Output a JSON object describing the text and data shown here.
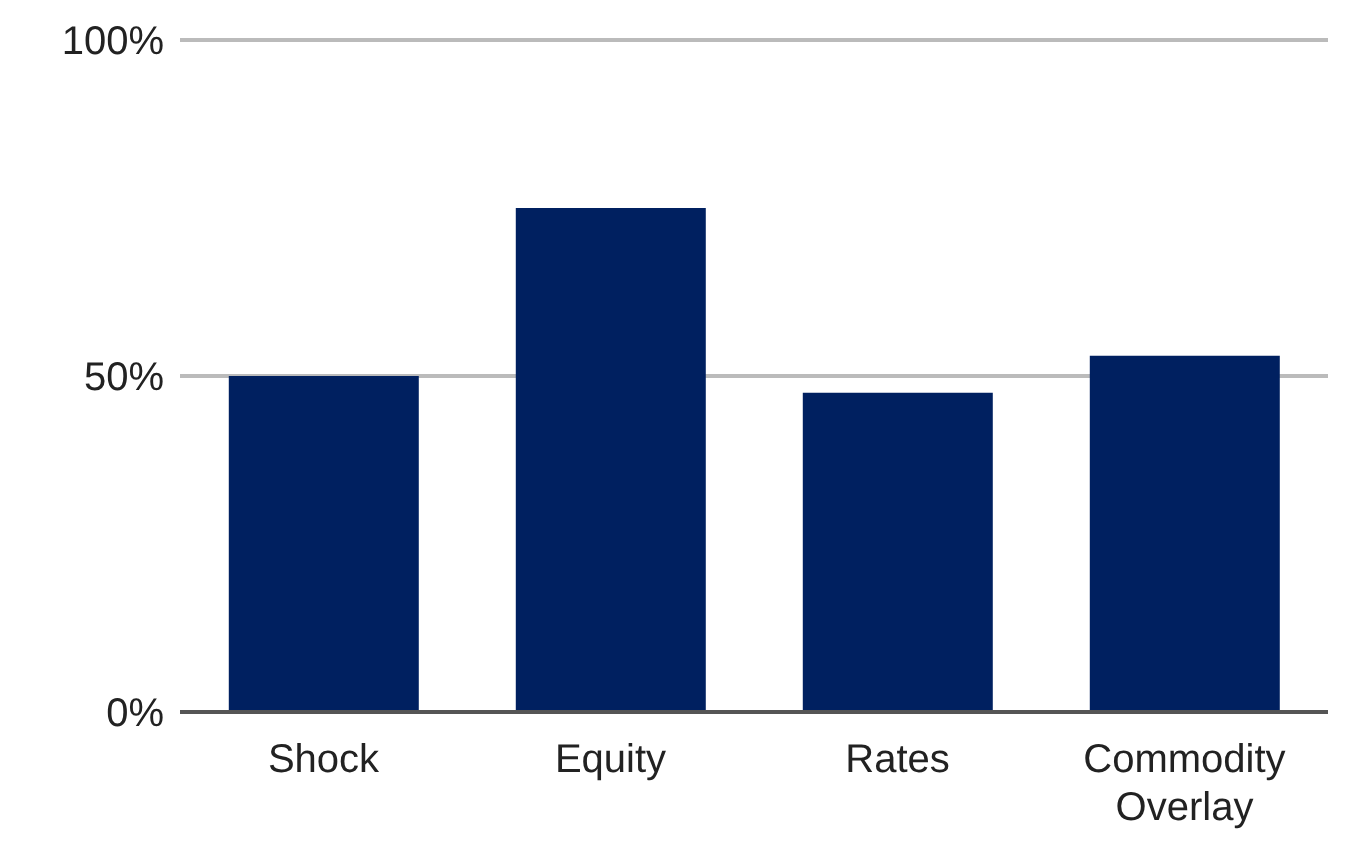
{
  "chart_data": {
    "type": "bar",
    "categories": [
      "Shock",
      "Equity",
      "Rates",
      "Commodity Overlay"
    ],
    "values": [
      50,
      75,
      47.5,
      53
    ],
    "color": "#002060",
    "ylim": [
      0,
      100
    ],
    "yticks": [
      {
        "value": 0,
        "label": "0%"
      },
      {
        "value": 50,
        "label": "50%"
      },
      {
        "value": 100,
        "label": "100%"
      }
    ],
    "grid": "y"
  }
}
